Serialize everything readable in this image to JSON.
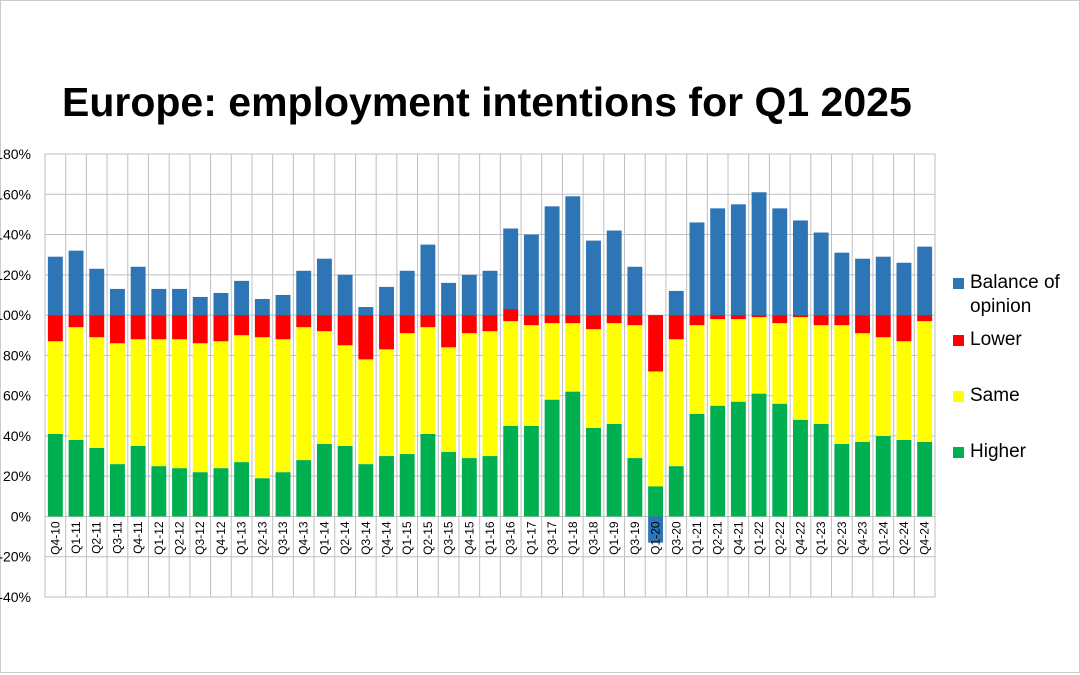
{
  "chart_data": {
    "type": "stacked_bar",
    "title": "Europe: employment intentions for Q1 2025",
    "categories": [
      "Q4-10",
      "Q1-11",
      "Q2-11",
      "Q3-11",
      "Q4-11",
      "Q1-12",
      "Q2-12",
      "Q3-12",
      "Q4-12",
      "Q1-13",
      "Q2-13",
      "Q3-13",
      "Q4-13",
      "Q1-14",
      "Q2-14",
      "Q3-14",
      "'Q4-14",
      "Q1-15",
      "Q2-15",
      "Q3-15",
      "Q4-15",
      "Q1-16",
      "Q3-16",
      "Q1-17",
      "Q3-17",
      "Q1-18",
      "Q3-18",
      "Q1-19",
      "Q3-19",
      "Q1-20",
      "Q3-20",
      "Q1-21",
      "Q2-21",
      "Q4-21",
      "Q1-22",
      "Q2-22",
      "Q4-22",
      "Q1-23",
      "Q2-23",
      "Q4-23",
      "Q1-24",
      "Q2-24",
      "Q4-24"
    ],
    "series": [
      {
        "name": "Higher",
        "color": "#00b050",
        "values": [
          41,
          38,
          34,
          26,
          35,
          25,
          24,
          22,
          24,
          27,
          19,
          22,
          28,
          36,
          35,
          26,
          30,
          31,
          41,
          32,
          29,
          30,
          45,
          45,
          58,
          62,
          44,
          46,
          29,
          15,
          25,
          51,
          55,
          57,
          61,
          56,
          48,
          46,
          36,
          37,
          40,
          38,
          37
        ]
      },
      {
        "name": "Same",
        "color": "#ffff00",
        "values": [
          46,
          56,
          55,
          60,
          53,
          63,
          64,
          64,
          63,
          63,
          70,
          66,
          66,
          56,
          50,
          52,
          53,
          60,
          53,
          52,
          62,
          62,
          52,
          50,
          38,
          34,
          49,
          50,
          66,
          57,
          63,
          44,
          43,
          41,
          38,
          40,
          51,
          49,
          59,
          54,
          49,
          49,
          60
        ]
      },
      {
        "name": "Lower",
        "color": "#ff0000",
        "values": [
          13,
          6,
          11,
          14,
          12,
          12,
          12,
          14,
          13,
          10,
          11,
          12,
          6,
          8,
          15,
          22,
          17,
          9,
          6,
          16,
          9,
          8,
          6,
          5,
          4,
          4,
          7,
          4,
          5,
          28,
          12,
          5,
          2,
          2,
          1,
          4,
          1,
          5,
          5,
          9,
          11,
          13,
          3
        ]
      },
      {
        "name": "Balance of opinion",
        "color": "#2e75b6",
        "values": [
          29,
          32,
          23,
          13,
          24,
          13,
          13,
          9,
          11,
          17,
          8,
          10,
          22,
          28,
          20,
          4,
          14,
          22,
          35,
          16,
          20,
          22,
          40,
          40,
          54,
          59,
          37,
          42,
          24,
          -13,
          12,
          46,
          53,
          55,
          61,
          53,
          47,
          41,
          31,
          28,
          29,
          26,
          34
        ]
      }
    ],
    "ylim": [
      -40,
      180
    ],
    "yticks": [
      {
        "value": 180,
        "label": "180%"
      },
      {
        "value": 160,
        "label": "160%"
      },
      {
        "value": 140,
        "label": "140%"
      },
      {
        "value": 120,
        "label": "120%"
      },
      {
        "value": 100,
        "label": "100%"
      },
      {
        "value": 80,
        "label": "80%"
      },
      {
        "value": 60,
        "label": "60%"
      },
      {
        "value": 40,
        "label": "40%"
      },
      {
        "value": 20,
        "label": "20%"
      },
      {
        "value": 0,
        "label": "0%"
      },
      {
        "value": -20,
        "label": "-20%"
      },
      {
        "value": -40,
        "label": "-40%"
      }
    ],
    "grid": true,
    "legend": "right"
  }
}
